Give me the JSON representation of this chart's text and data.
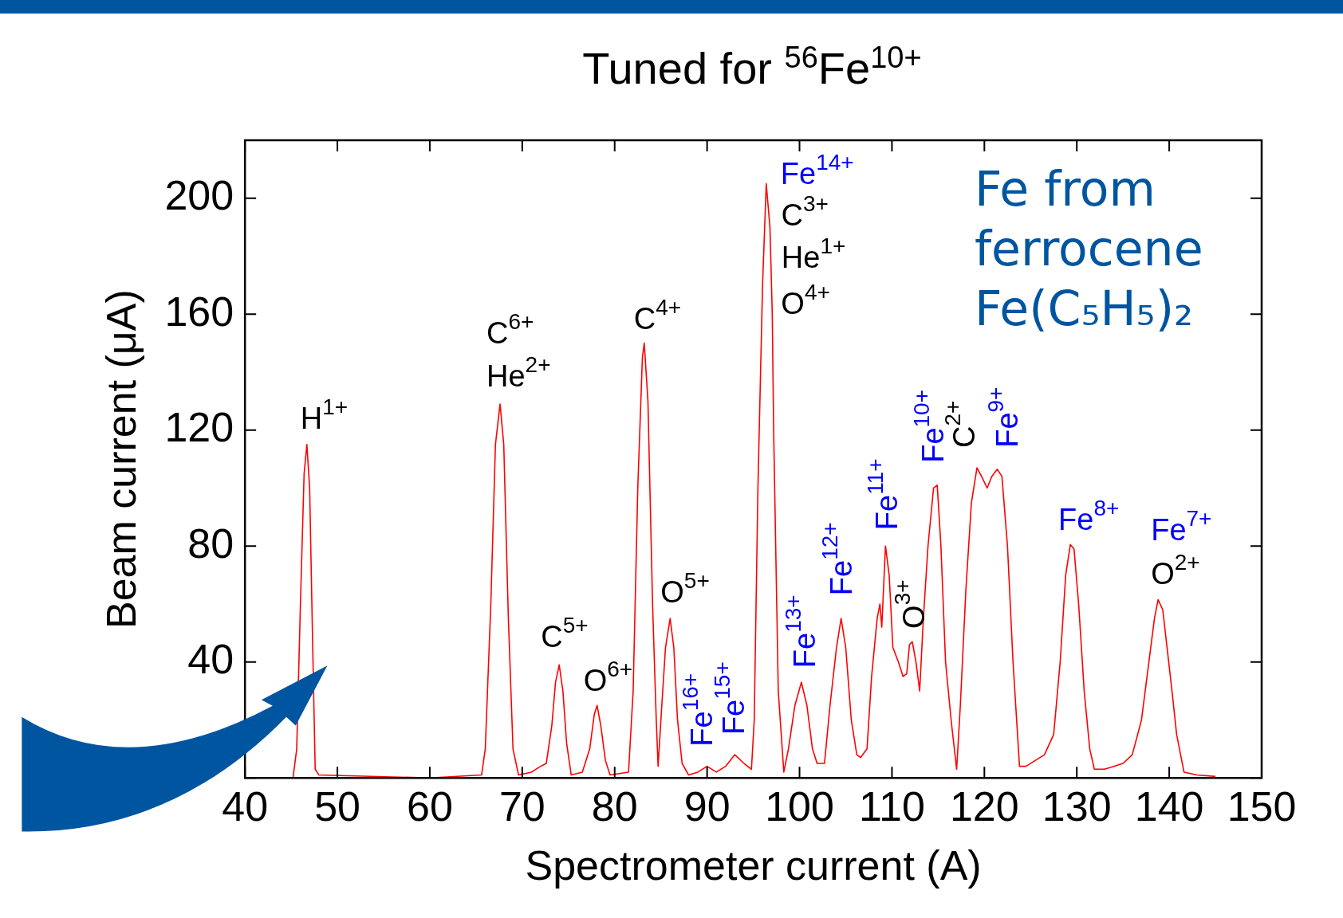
{
  "chart_data": {
    "type": "line",
    "title": "Tuned for $^{56}$Fe$^{10+}$",
    "xlabel": "Spectrometer current (A)",
    "ylabel": "Beam current (μA)",
    "xlim": [
      40,
      150
    ],
    "xticks": [
      40,
      50,
      60,
      70,
      80,
      90,
      100,
      110,
      120,
      130,
      140,
      150
    ],
    "ylim": [
      0,
      220
    ],
    "yticks": [
      {
        "value": 0,
        "label": null
      },
      40,
      80,
      120,
      160,
      200
    ],
    "legend": false,
    "marker": "none",
    "line_style": "solid",
    "series": [
      {
        "color": "#ff0000",
        "x": [
          45.2,
          45.6,
          46,
          46.4,
          46.7,
          47,
          47.3,
          47.6,
          48,
          60,
          65.6,
          66,
          66.6,
          67.1,
          67.6,
          68,
          68.5,
          69,
          69.6,
          71,
          72,
          72.6,
          73.2,
          73.6,
          74,
          74.4,
          74.8,
          75.3,
          76.5,
          77.3,
          77.8,
          78.1,
          78.5,
          79,
          79.5,
          81.5,
          82,
          82.5,
          83,
          83.2,
          83.6,
          84.1,
          84.5,
          84.7,
          85.1,
          85.5,
          86,
          86.4,
          86.8,
          87.3,
          88,
          89,
          90,
          91,
          92,
          93,
          94,
          94.8,
          95.1,
          95.5,
          96,
          96.4,
          96.8,
          96.92,
          97.05,
          97.2,
          97.7,
          98.3,
          98.8,
          99.5,
          100.2,
          100.8,
          101.4,
          101.9,
          102.7,
          103.3,
          104,
          104.5,
          105,
          105.6,
          106.2,
          106.6,
          107.3,
          107.8,
          108.4,
          108.7,
          108.9,
          109.3,
          109.7,
          110.1,
          110.7,
          111.2,
          111.6,
          111.9,
          112.2,
          112.6,
          113,
          113.4,
          113.9,
          114.5,
          114.9,
          115.3,
          115.8,
          116.4,
          117,
          117.4,
          118,
          118.6,
          119.2,
          119.7,
          120.3,
          120.8,
          121.4,
          121.9,
          122.5,
          123.1,
          123.8,
          124.5,
          125.5,
          126.5,
          127.5,
          128.2,
          128.8,
          129.3,
          129.7,
          130.2,
          130.8,
          131.4,
          131.9,
          133,
          134,
          135,
          136,
          137,
          137.8,
          138.4,
          138.8,
          139.3,
          139.8,
          140.3,
          140.8,
          141.6,
          143,
          145
        ],
        "values": [
          0,
          10,
          60,
          105,
          115,
          100,
          50,
          3,
          1,
          0,
          1,
          10,
          60,
          115,
          129,
          115,
          55,
          10,
          1,
          2,
          4,
          5,
          18,
          33,
          39,
          30,
          12,
          1,
          2,
          10,
          22,
          25,
          18,
          6,
          1,
          2,
          30,
          100,
          145,
          150,
          130,
          60,
          20,
          4,
          25,
          45,
          55,
          45,
          20,
          5,
          1,
          2,
          4,
          2,
          4,
          8,
          5,
          3,
          20,
          100,
          170,
          205,
          190,
          176,
          160,
          120,
          30,
          2,
          10,
          25,
          33,
          25,
          10,
          5,
          5,
          25,
          45,
          55,
          45,
          20,
          8,
          7,
          10,
          35,
          55,
          60,
          52,
          80,
          70,
          45,
          40,
          35,
          36,
          46,
          47,
          40,
          30,
          55,
          80,
          100,
          101,
          80,
          40,
          20,
          3,
          25,
          65,
          95,
          107,
          104,
          100,
          104,
          106.5,
          104,
          80,
          40,
          4,
          4,
          6,
          8,
          15,
          40,
          70,
          80.5,
          79,
          60,
          30,
          10,
          3,
          3,
          4,
          5,
          8,
          20,
          40,
          55,
          61.5,
          58,
          44,
          30,
          15,
          2,
          1,
          0.5
        ]
      }
    ],
    "annotations": [
      {
        "text": "H$^{1+}$",
        "x": 46.7,
        "y": 115
      },
      {
        "text": "C$^{6+}$",
        "x": 67.6,
        "y": 129
      },
      {
        "text": "He$^{2+}$",
        "x": 67.6,
        "y": 129
      },
      {
        "text": "C$^{5+}$",
        "x": 74,
        "y": 39
      },
      {
        "text": "O$^{6+}$",
        "x": 78.1,
        "y": 25
      },
      {
        "text": "C$^{4+}$",
        "x": 83.2,
        "y": 150
      },
      {
        "text": "O$^{5+}$",
        "x": 86,
        "y": 55
      },
      {
        "text": "Fe$^{16+}$",
        "x": 90,
        "y": 4
      },
      {
        "text": "Fe$^{15+}$",
        "x": 93,
        "y": 8
      },
      {
        "text": "Fe$^{14+}$",
        "x": 96.4,
        "y": 205
      },
      {
        "text": "C$^{3+}$",
        "x": 96.8,
        "y": 190
      },
      {
        "text": "He$^{1+}$",
        "x": 96.92,
        "y": 176
      },
      {
        "text": "O$^{4+}$",
        "x": 97.05,
        "y": 160
      },
      {
        "text": "Fe$^{13+}$",
        "x": 100.2,
        "y": 33
      },
      {
        "text": "Fe$^{12+}$",
        "x": 104.5,
        "y": 55
      },
      {
        "text": "Fe$^{11+}$",
        "x": 109.3,
        "y": 80
      },
      {
        "text": "O$^{3+}$",
        "x": 112.1,
        "y": 46
      },
      {
        "text": "Fe$^{10+}$",
        "x": 114.9,
        "y": 101
      },
      {
        "text": "C$^{2+}$",
        "x": 119.2,
        "y": 107
      },
      {
        "text": "Fe$^{9+}$",
        "x": 121.4,
        "y": 106.5
      },
      {
        "text": "Fe$^{8+}$",
        "x": 129.3,
        "y": 80.5
      },
      {
        "text": "Fe$^{7+}$",
        "x": 138.8,
        "y": 61.5
      },
      {
        "text": "O$^{2+}$",
        "x": 138.8,
        "y": 61.5
      },
      "Fe from ferrocene Fe(C₅H₅)₂"
    ]
  }
}
